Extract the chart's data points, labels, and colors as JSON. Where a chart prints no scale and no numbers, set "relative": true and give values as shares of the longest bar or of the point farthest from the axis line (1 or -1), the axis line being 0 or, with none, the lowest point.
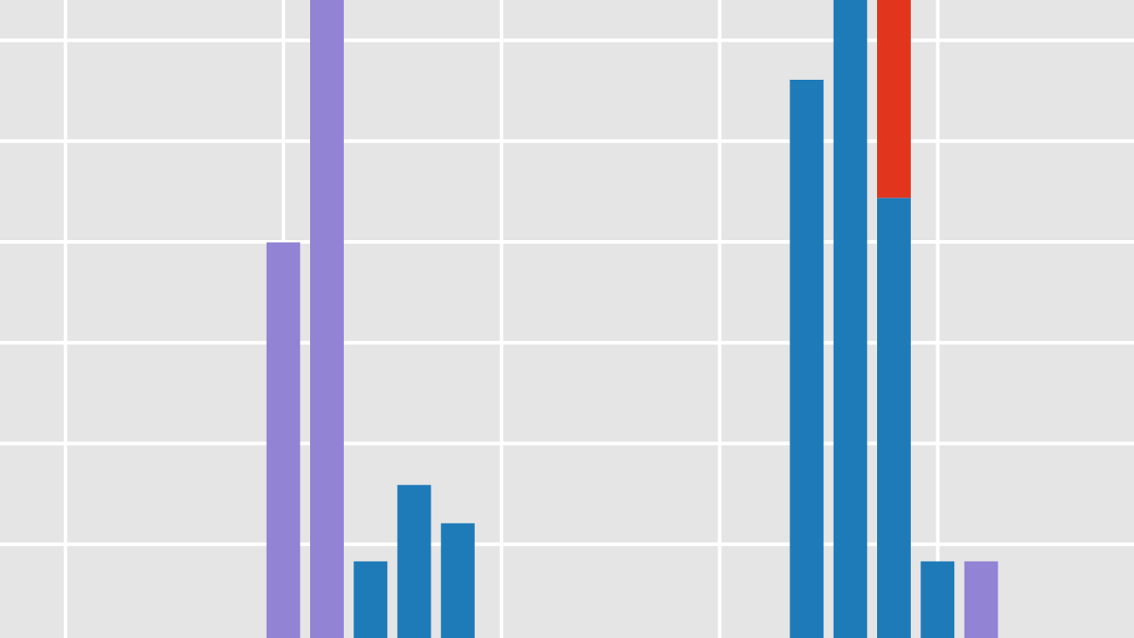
{
  "chart_data": [
    {
      "type": "bar",
      "relative": true,
      "stacked": true,
      "grid": true,
      "categories": [
        null,
        null,
        null,
        null,
        null
      ],
      "series": [
        {
          "color": "#9283d4",
          "values": [
            0.62,
            1,
            null,
            null,
            null
          ]
        },
        {
          "color": "#1f7bb8",
          "values": [
            null,
            null,
            0.12,
            0.24,
            0.18
          ]
        }
      ]
    },
    {
      "type": "bar",
      "relative": true,
      "stacked": true,
      "grid": true,
      "categories": [
        null,
        null,
        null,
        null,
        null
      ],
      "series": [
        {
          "color": "#1f7bb8",
          "values": [
            0.875,
            1,
            0.69,
            0.12,
            null
          ]
        },
        {
          "color": "#e2351e",
          "values": [
            null,
            null,
            0.31,
            null,
            null
          ]
        },
        {
          "color": "#9283d4",
          "values": [
            null,
            null,
            null,
            null,
            0.12
          ]
        }
      ]
    }
  ]
}
